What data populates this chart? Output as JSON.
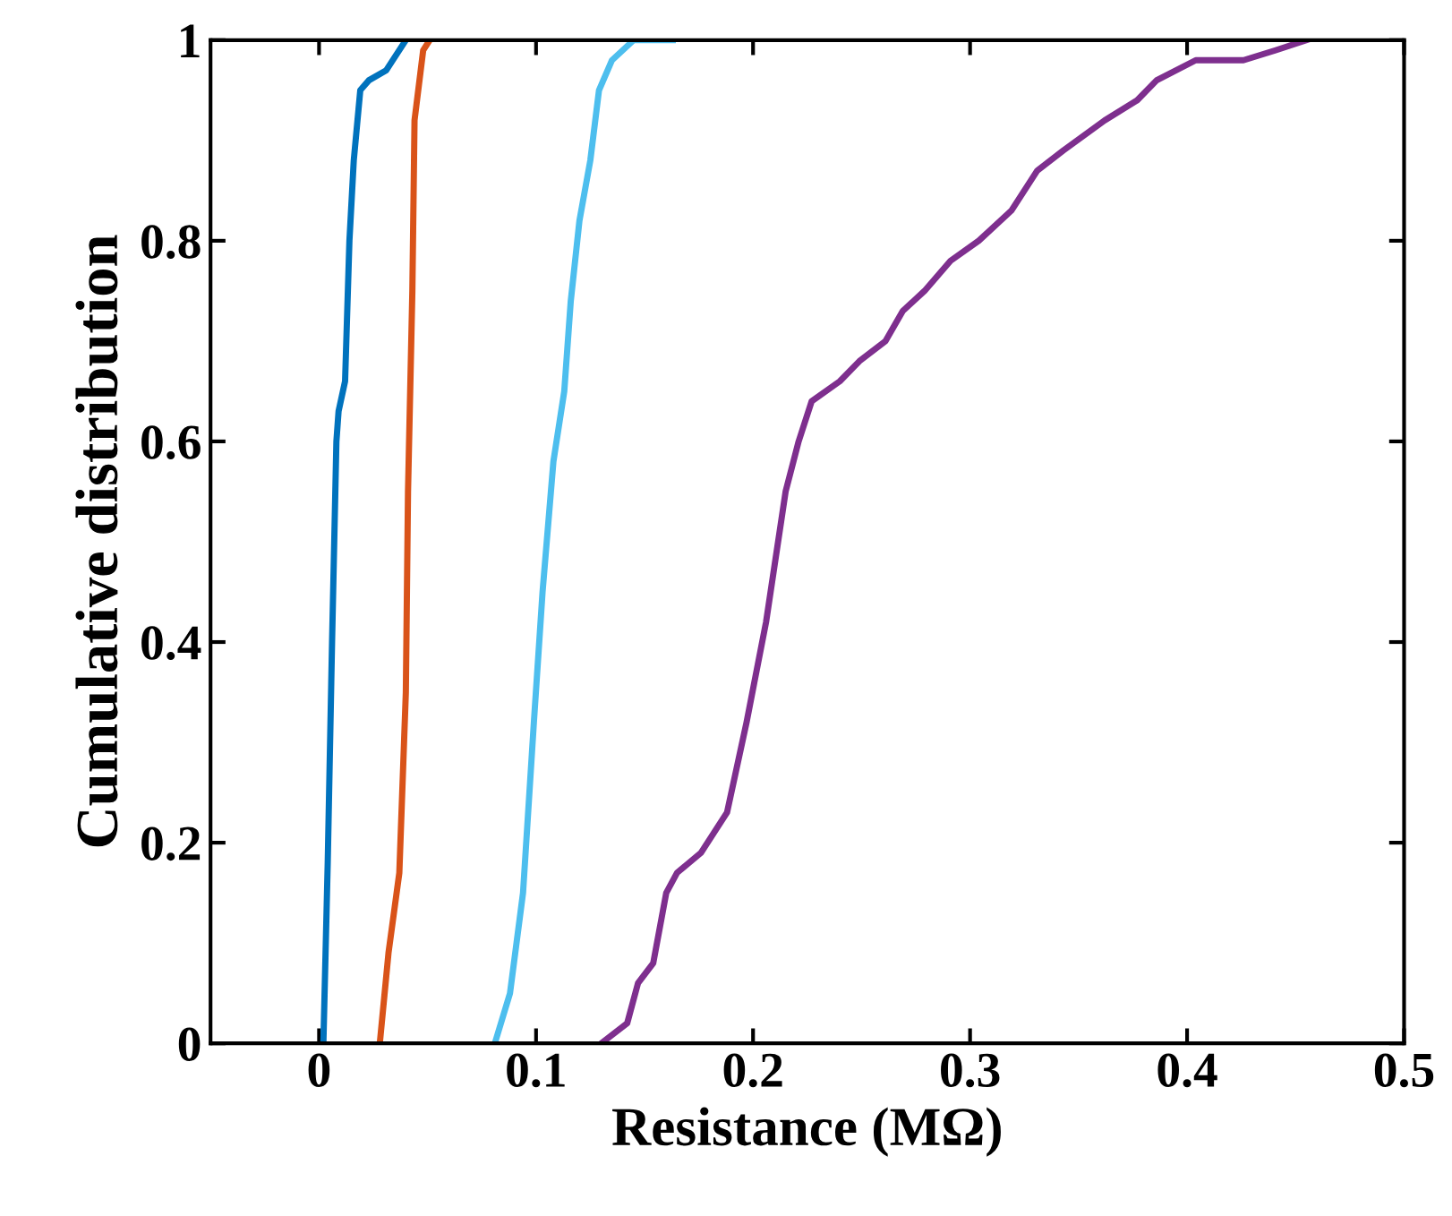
{
  "chart_data": {
    "type": "line",
    "xlabel": "Resistance (MΩ)",
    "ylabel": "Cumulative distribution",
    "xlim": [
      -0.05,
      0.5
    ],
    "ylim": [
      0,
      1
    ],
    "xticks": [
      0,
      0.1,
      0.2,
      0.3,
      0.4,
      0.5
    ],
    "yticks": [
      0,
      0.2,
      0.4,
      0.6,
      0.8,
      1
    ],
    "grid": false,
    "legend": false,
    "marker": "none",
    "line_style": "solid",
    "series": [
      {
        "color": "#0072bd",
        "x": [
          0.002,
          0.004,
          0.006,
          0.008,
          0.009,
          0.012,
          0.014,
          0.016,
          0.019,
          0.023,
          0.031,
          0.034,
          0.04
        ],
        "values": [
          0,
          0.18,
          0.4,
          0.6,
          0.63,
          0.66,
          0.8,
          0.88,
          0.95,
          0.96,
          0.97,
          0.98,
          1
        ]
      },
      {
        "color": "#d95319",
        "x": [
          0.028,
          0.032,
          0.037,
          0.04,
          0.041,
          0.043,
          0.044,
          0.048,
          0.051
        ],
        "values": [
          0,
          0.09,
          0.17,
          0.35,
          0.55,
          0.75,
          0.92,
          0.99,
          1
        ]
      },
      {
        "color": "#4dbeee",
        "x": [
          0.081,
          0.088,
          0.094,
          0.099,
          0.103,
          0.108,
          0.113,
          0.116,
          0.12,
          0.125,
          0.129,
          0.135,
          0.145,
          0.163
        ],
        "values": [
          0,
          0.05,
          0.15,
          0.32,
          0.45,
          0.58,
          0.65,
          0.74,
          0.82,
          0.88,
          0.95,
          0.98,
          1,
          1
        ]
      },
      {
        "color": "#7e2f8e",
        "x": [
          0.13,
          0.142,
          0.147,
          0.154,
          0.16,
          0.165,
          0.176,
          0.188,
          0.197,
          0.206,
          0.215,
          0.221,
          0.227,
          0.24,
          0.249,
          0.261,
          0.269,
          0.279,
          0.291,
          0.304,
          0.319,
          0.331,
          0.343,
          0.362,
          0.377,
          0.386,
          0.404,
          0.426,
          0.441,
          0.455
        ],
        "values": [
          0,
          0.02,
          0.06,
          0.08,
          0.15,
          0.17,
          0.19,
          0.23,
          0.32,
          0.42,
          0.55,
          0.6,
          0.64,
          0.66,
          0.68,
          0.7,
          0.73,
          0.75,
          0.78,
          0.8,
          0.83,
          0.87,
          0.89,
          0.92,
          0.94,
          0.96,
          0.98,
          0.98,
          0.99,
          1
        ]
      }
    ]
  }
}
